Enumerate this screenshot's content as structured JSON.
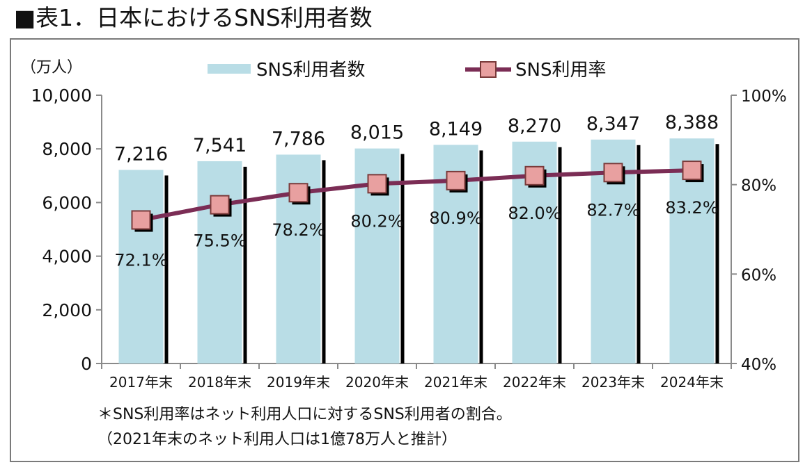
{
  "page": {
    "title": "■表1．日本におけるSNS利用者数"
  },
  "chart_data": {
    "type": "bar",
    "categories": [
      "2017年末",
      "2018年末",
      "2019年末",
      "2020年末",
      "2021年末",
      "2022年末",
      "2023年末",
      "2024年末"
    ],
    "series": [
      {
        "name": "SNS利用者数",
        "type": "bar",
        "axis": "left",
        "values": [
          7216,
          7541,
          7786,
          8015,
          8149,
          8270,
          8347,
          8388
        ],
        "labels": [
          "7,216",
          "7,541",
          "7,786",
          "8,015",
          "8,149",
          "8,270",
          "8,347",
          "8,388"
        ],
        "color": "#b9dde6"
      },
      {
        "name": "SNS利用率",
        "type": "line",
        "axis": "right",
        "values": [
          72.1,
          75.5,
          78.2,
          80.2,
          80.9,
          82.0,
          82.7,
          83.2
        ],
        "labels": [
          "72.1%",
          "75.5%",
          "78.2%",
          "80.2%",
          "80.9%",
          "82.0%",
          "82.7%",
          "83.2%"
        ],
        "color": "#7b2d55",
        "marker_color": "#e8a0a0"
      }
    ],
    "y_left": {
      "unit_label": "（万人）",
      "ylim": [
        0,
        10000
      ],
      "ticks": [
        "0",
        "2,000",
        "4,000",
        "6,000",
        "8,000",
        "10,000"
      ]
    },
    "y_right": {
      "ylim": [
        40,
        100
      ],
      "ticks": [
        "40%",
        "60%",
        "80%",
        "100%"
      ]
    },
    "legend": {
      "position": "top-center"
    },
    "grid": false,
    "notes": [
      "＊SNS利用率はネット利用人口に対するSNS利用者の割合。",
      "（2021年末のネット利用人口は1億78万人と推計）"
    ]
  }
}
